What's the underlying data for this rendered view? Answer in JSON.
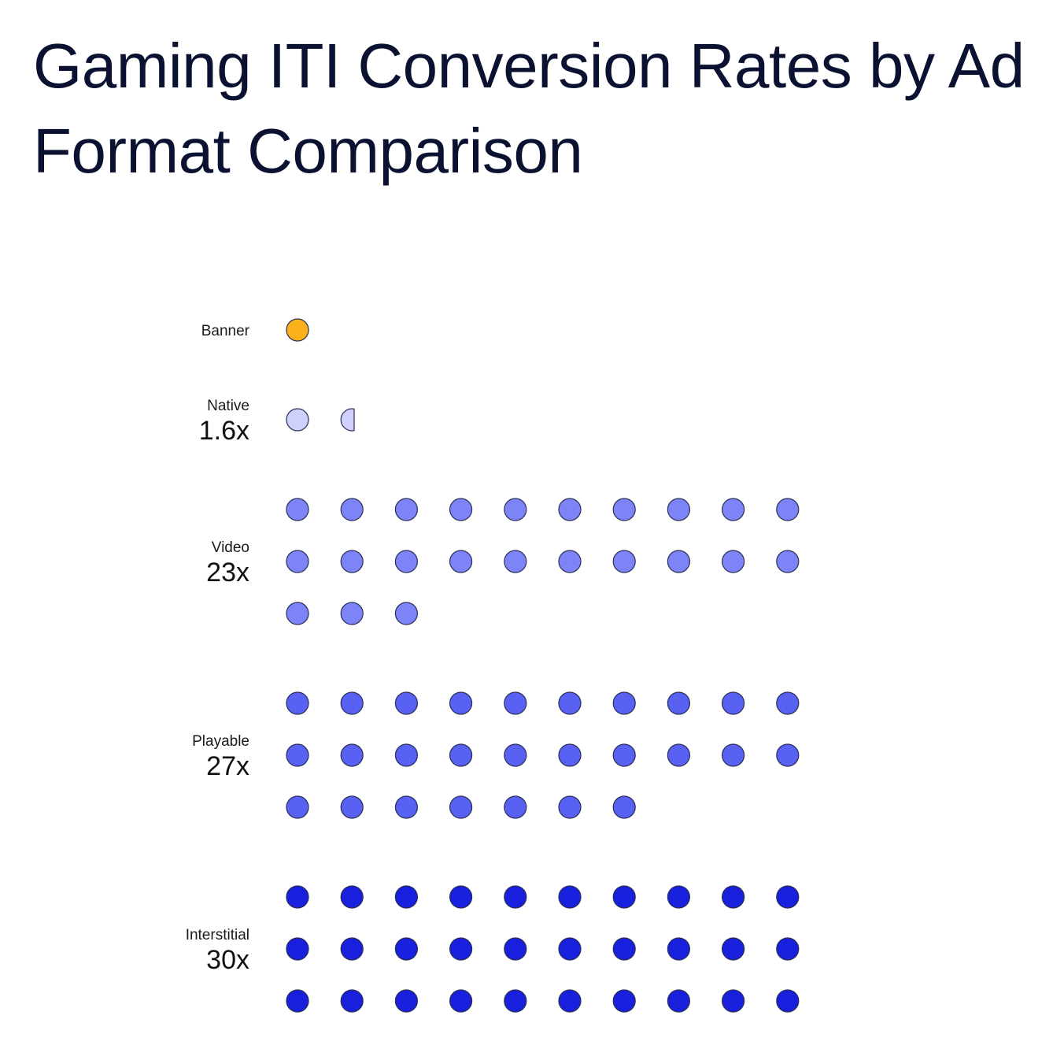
{
  "title": "Gaming ITI Conversion Rates by Ad Format Comparison",
  "chart_data": {
    "type": "pictograph",
    "unit_note": "",
    "categories": [
      "Banner",
      "Native",
      "Video",
      "Playable",
      "Interstitial"
    ],
    "series": [
      {
        "label": "Banner",
        "value_label": "",
        "value": 1,
        "color": "#fbb21a"
      },
      {
        "label": "Native",
        "value_label": "1.6x",
        "value": 1.6,
        "color": "#cfd0fb"
      },
      {
        "label": "Video",
        "value_label": "23x",
        "value": 23,
        "color": "#7c84f7"
      },
      {
        "label": "Playable",
        "value_label": "27x",
        "value": 27,
        "color": "#5861f2"
      },
      {
        "label": "Interstitial",
        "value_label": "30x",
        "value": 30,
        "color": "#1820dd"
      }
    ],
    "dots_per_row": 10
  }
}
